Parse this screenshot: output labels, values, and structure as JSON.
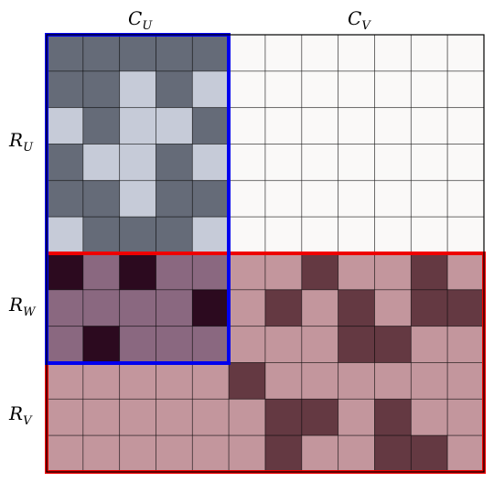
{
  "labels": {
    "col_u": {
      "main": "C",
      "sub": "U"
    },
    "col_v": {
      "main": "C",
      "sub": "V"
    },
    "row_u": {
      "main": "R",
      "sub": "U"
    },
    "row_w": {
      "main": "R",
      "sub": "W"
    },
    "row_v": {
      "main": "R",
      "sub": "V"
    }
  }
}
